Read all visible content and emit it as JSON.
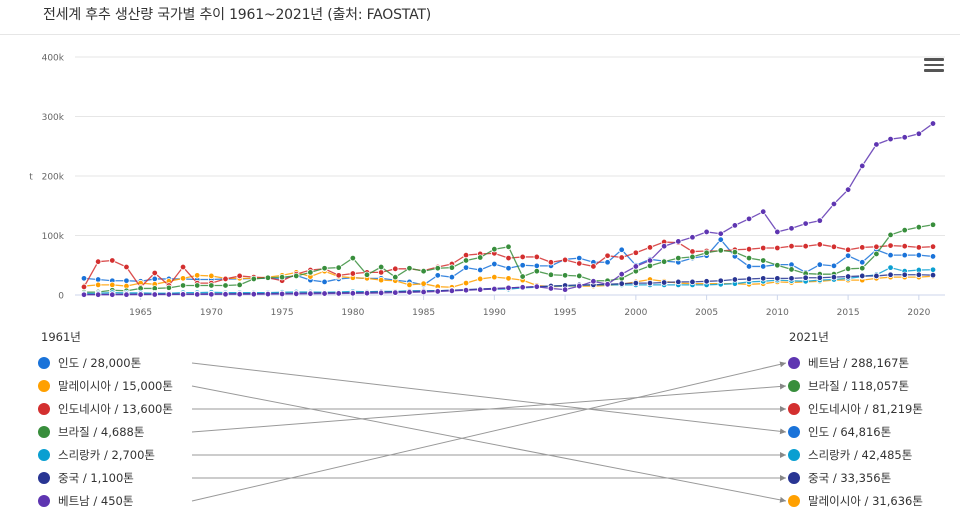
{
  "title": "전세계 후추 생산량 국가별 추이 1961~2021년 (출처: FAOSTAT)",
  "menu_icon": "hamburger-menu-icon",
  "legend": {
    "start_year_label": "1961년",
    "end_year_label": "2021년",
    "start": [
      {
        "country": "인도",
        "value": "28,000톤",
        "label": "인도 / 28,000톤",
        "color": "#1a73d9"
      },
      {
        "country": "말레이시아",
        "value": "15,000톤",
        "label": "말레이시아 / 15,000톤",
        "color": "#ffa000"
      },
      {
        "country": "인도네시아",
        "value": "13,600톤",
        "label": "인도네시아 / 13,600톤",
        "color": "#d32f2f"
      },
      {
        "country": "브라질",
        "value": "4,688톤",
        "label": "브라질 / 4,688톤",
        "color": "#388e3c"
      },
      {
        "country": "스리랑카",
        "value": "2,700톤",
        "label": "스리랑카 / 2,700톤",
        "color": "#0a9fd1"
      },
      {
        "country": "중국",
        "value": "1,100톤",
        "label": "중국 / 1,100톤",
        "color": "#283593"
      },
      {
        "country": "베트남",
        "value": "450톤",
        "label": "베트남 / 450톤",
        "color": "#5e35b1"
      }
    ],
    "end": [
      {
        "country": "베트남",
        "value": "288,167톤",
        "label": "베트남 / 288,167톤",
        "color": "#5e35b1"
      },
      {
        "country": "브라질",
        "value": "118,057톤",
        "label": "브라질 / 118,057톤",
        "color": "#388e3c"
      },
      {
        "country": "인도네시아",
        "value": "81,219톤",
        "label": "인도네시아 / 81,219톤",
        "color": "#d32f2f"
      },
      {
        "country": "인도",
        "value": "64,816톤",
        "label": "인도 / 64,816톤",
        "color": "#1a73d9"
      },
      {
        "country": "스리랑카",
        "value": "42,485톤",
        "label": "스리랑카 / 42,485톤",
        "color": "#0a9fd1"
      },
      {
        "country": "중국",
        "value": "33,356톤",
        "label": "중국 / 33,356톤",
        "color": "#283593"
      },
      {
        "country": "말레이시아",
        "value": "31,636톤",
        "label": "말레이시아 / 31,636톤",
        "color": "#ffa000"
      }
    ],
    "connections": [
      [
        0,
        3
      ],
      [
        1,
        6
      ],
      [
        2,
        2
      ],
      [
        3,
        1
      ],
      [
        4,
        4
      ],
      [
        5,
        5
      ],
      [
        6,
        0
      ]
    ]
  },
  "chart_data": {
    "type": "line",
    "title": "전세계 후추 생산량 국가별 추이 1961~2021년 (출처: FAOSTAT)",
    "xlabel": "",
    "ylabel": "t",
    "ylim": [
      0,
      400000
    ],
    "yticks": [
      "0",
      "100k",
      "200k",
      "300k",
      "400k"
    ],
    "xticks": [
      "1965",
      "1970",
      "1975",
      "1980",
      "1985",
      "1990",
      "1995",
      "2000",
      "2005",
      "2010",
      "2015",
      "2020"
    ],
    "grid": true,
    "legend_position": "bottom (ranked 1961 vs 2021)",
    "x_start": 1961,
    "x_end": 2021,
    "series": [
      {
        "name": "인도",
        "color": "#1a73d9",
        "values": [
          28000,
          26000,
          24000,
          24000,
          23000,
          27000,
          27000,
          27000,
          26000,
          26000,
          27000,
          27000,
          28000,
          28000,
          27000,
          33000,
          25000,
          22000,
          27000,
          29000,
          28000,
          28000,
          25000,
          22000,
          17000,
          33000,
          30000,
          46000,
          42000,
          52000,
          45000,
          50000,
          49000,
          49000,
          60000,
          62000,
          55000,
          55000,
          76000,
          50000,
          60000,
          57000,
          55000,
          62000,
          66000,
          93000,
          65000,
          48000,
          48000,
          51000,
          51000,
          38000,
          51000,
          49000,
          66000,
          55000,
          76000,
          67000,
          67000,
          67000,
          64816
        ]
      },
      {
        "name": "말레이시아",
        "color": "#ffa000",
        "values": [
          15000,
          17000,
          17000,
          15000,
          20000,
          18000,
          23000,
          28000,
          33000,
          32000,
          28000,
          28000,
          28000,
          30000,
          33000,
          38000,
          31000,
          40000,
          31000,
          29000,
          28000,
          25000,
          24000,
          17000,
          19000,
          14000,
          13000,
          20000,
          27000,
          30000,
          28000,
          25000,
          16000,
          14000,
          15000,
          15000,
          15000,
          16000,
          18000,
          22000,
          26000,
          23000,
          20000,
          19000,
          19000,
          19000,
          19000,
          18000,
          19000,
          22000,
          21000,
          22000,
          23000,
          25000,
          25000,
          25000,
          28000,
          30000,
          30000,
          30000,
          31636
        ]
      },
      {
        "name": "인도네시아",
        "color": "#d32f2f",
        "values": [
          13600,
          56000,
          58000,
          47000,
          13000,
          37000,
          16000,
          47000,
          20000,
          20000,
          27000,
          32000,
          30000,
          29000,
          24000,
          35000,
          42000,
          44000,
          33000,
          36000,
          38000,
          38000,
          44000,
          44000,
          41000,
          47000,
          52000,
          67000,
          69000,
          70000,
          62000,
          64000,
          64000,
          55000,
          59000,
          53000,
          48000,
          66000,
          63000,
          71000,
          80000,
          89000,
          88000,
          73000,
          74000,
          74000,
          76000,
          77000,
          79000,
          79000,
          82000,
          82000,
          85000,
          81000,
          76000,
          80000,
          81000,
          83000,
          82000,
          80000,
          81219
        ]
      },
      {
        "name": "브라질",
        "color": "#388e3c",
        "values": [
          4688,
          5000,
          8000,
          7000,
          11000,
          11000,
          12000,
          16000,
          16000,
          16000,
          16000,
          17000,
          27000,
          29000,
          30000,
          32000,
          38000,
          45000,
          46000,
          62000,
          34000,
          47000,
          30000,
          45000,
          40000,
          45000,
          46000,
          58000,
          63000,
          77000,
          81000,
          31000,
          40000,
          34000,
          33000,
          32000,
          24000,
          24000,
          28000,
          40000,
          49000,
          56000,
          62000,
          64000,
          71000,
          75000,
          72000,
          62000,
          58000,
          50000,
          43000,
          36000,
          35000,
          35000,
          44000,
          45000,
          69000,
          101000,
          109000,
          114000,
          118057
        ]
      },
      {
        "name": "스리랑카",
        "color": "#0a9fd1",
        "values": [
          2700,
          3000,
          4000,
          3500,
          3500,
          3000,
          3000,
          4000,
          4000,
          4500,
          4000,
          4000,
          4000,
          4000,
          4500,
          5000,
          5000,
          4500,
          5000,
          6000,
          5500,
          6000,
          6000,
          7000,
          7000,
          7000,
          8000,
          8000,
          10000,
          10000,
          10000,
          12000,
          13000,
          15000,
          15000,
          16000,
          17000,
          17000,
          17000,
          17000,
          17000,
          17000,
          17000,
          17000,
          17000,
          18000,
          19000,
          22000,
          23000,
          25000,
          24000,
          23000,
          25000,
          26000,
          28000,
          31000,
          34000,
          46000,
          40000,
          42000,
          42485
        ]
      },
      {
        "name": "중국",
        "color": "#283593",
        "values": [
          1100,
          1100,
          1200,
          1300,
          1400,
          1500,
          1600,
          1700,
          1800,
          2000,
          2100,
          2200,
          2300,
          2500,
          2700,
          3000,
          3300,
          3500,
          3800,
          4000,
          4500,
          5000,
          5500,
          6000,
          6500,
          7000,
          8000,
          9000,
          10000,
          11000,
          12000,
          13000,
          14000,
          15000,
          16000,
          17000,
          17000,
          18000,
          19000,
          20000,
          20000,
          21000,
          22000,
          22000,
          23000,
          24000,
          26000,
          27000,
          28000,
          28000,
          28000,
          29000,
          29000,
          30000,
          31000,
          32000,
          32000,
          34000,
          34000,
          34000,
          33356
        ]
      },
      {
        "name": "베트남",
        "color": "#5e35b1",
        "values": [
          450,
          500,
          500,
          600,
          700,
          800,
          900,
          1000,
          1000,
          1100,
          1200,
          1300,
          1400,
          1500,
          1700,
          2000,
          2200,
          2400,
          2600,
          2800,
          3000,
          3500,
          4000,
          4500,
          5000,
          6000,
          7000,
          8000,
          9000,
          10000,
          12000,
          13000,
          14000,
          11000,
          9000,
          15000,
          23000,
          18000,
          35000,
          48000,
          58000,
          82000,
          90000,
          97000,
          106000,
          103000,
          117000,
          128000,
          140000,
          106000,
          112000,
          120000,
          125000,
          153000,
          177000,
          217000,
          253000,
          262000,
          265000,
          271000,
          288167
        ]
      }
    ]
  }
}
